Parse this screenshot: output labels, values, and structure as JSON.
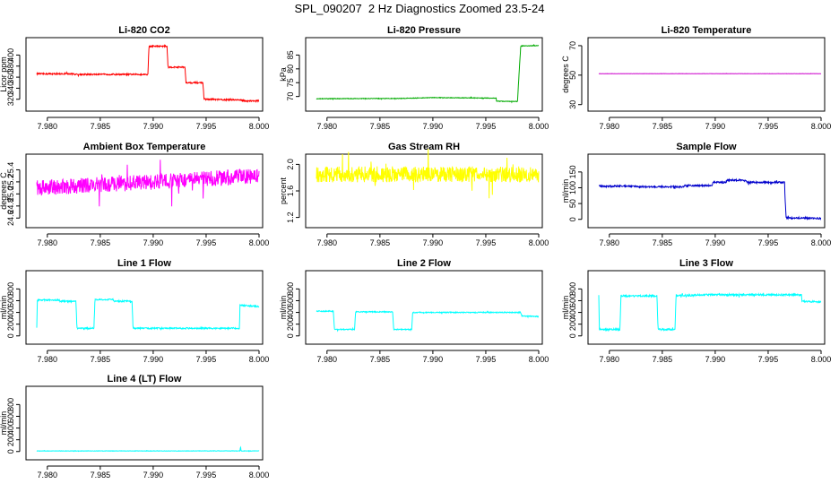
{
  "figure_title": "SPL_090207  2 Hz Diagnostics Zoomed 23.5-24",
  "chart_data": [
    {
      "type": "line",
      "title": "Li-820 CO2",
      "ylabel": "Licor ppm",
      "color": "#ff0000",
      "xlim": [
        7.979,
        8.0
      ],
      "ylim": [
        305,
        425
      ],
      "xticks": [
        7.98,
        7.985,
        7.99,
        7.995,
        8.0
      ],
      "xtick_labels": [
        "7.980",
        "7.985",
        "7.990",
        "7.995",
        "8.000"
      ],
      "yticks": [
        320,
        340,
        360,
        380,
        400
      ],
      "ytick_labels": [
        "320",
        "340",
        "360",
        "380",
        "400"
      ],
      "noise": 1.2,
      "series": [
        {
          "name": "CO2",
          "x": [
            7.979,
            7.9825,
            7.9826,
            7.9895,
            7.9896,
            7.9913,
            7.9914,
            7.993,
            7.9931,
            7.9947,
            7.9948,
            7.997,
            7.998,
            7.9988,
            8.0
          ],
          "y": [
            366,
            366,
            365,
            365,
            416,
            416,
            378,
            378,
            350,
            350,
            320,
            319,
            319,
            317,
            317
          ]
        }
      ]
    },
    {
      "type": "line",
      "title": "Li-820 Pressure",
      "ylabel": "kPa",
      "color": "#00aa00",
      "xlim": [
        7.979,
        8.0
      ],
      "ylim": [
        66,
        90
      ],
      "xticks": [
        7.98,
        7.985,
        7.99,
        7.995,
        8.0
      ],
      "xtick_labels": [
        "7.980",
        "7.985",
        "7.990",
        "7.995",
        "8.000"
      ],
      "yticks": [
        70,
        75,
        80,
        85
      ],
      "ytick_labels": [
        "70",
        "75",
        "80",
        "85"
      ],
      "noise": 0.1,
      "series": [
        {
          "name": "Pressure",
          "x": [
            7.979,
            7.987,
            7.99,
            7.996,
            7.99601,
            7.998,
            7.99805,
            7.99825,
            7.9983,
            8.0
          ],
          "y": [
            69.2,
            69.3,
            69.6,
            69.4,
            68.3,
            68.2,
            72.0,
            85.0,
            88.3,
            88.4
          ]
        }
      ]
    },
    {
      "type": "line",
      "title": "Li-820 Temperature",
      "ylabel": "degrees C",
      "color": "#cc00cc",
      "xlim": [
        7.979,
        8.0
      ],
      "ylim": [
        28,
        73
      ],
      "xticks": [
        7.98,
        7.985,
        7.99,
        7.995,
        8.0
      ],
      "xtick_labels": [
        "7.980",
        "7.985",
        "7.990",
        "7.995",
        "8.000"
      ],
      "yticks": [
        30,
        50,
        70
      ],
      "ytick_labels": [
        "30",
        "50",
        "70"
      ],
      "noise": 0.05,
      "series": [
        {
          "name": "Temperature",
          "x": [
            7.979,
            8.0
          ],
          "y": [
            51.0,
            51.0
          ]
        }
      ]
    },
    {
      "type": "line",
      "title": "Ambient Box Temperature",
      "ylabel": "degrees C",
      "color": "#ff00ff",
      "xlim": [
        7.979,
        8.0
      ],
      "ylim": [
        24.5,
        25.6
      ],
      "xticks": [
        7.98,
        7.985,
        7.99,
        7.995,
        8.0
      ],
      "xtick_labels": [
        "7.980",
        "7.985",
        "7.990",
        "7.995",
        "8.000"
      ],
      "yticks": [
        24.6,
        24.8,
        25.0,
        25.2,
        25.4
      ],
      "ytick_labels": [
        "24.6",
        "24.8",
        "25.0",
        "25.2",
        "25.4"
      ],
      "noise": 0.13,
      "series": [
        {
          "name": "Box Temperature",
          "x": [
            7.979,
            7.985,
            7.99,
            7.995,
            8.0
          ],
          "y": [
            25.1,
            25.15,
            25.2,
            25.25,
            25.3
          ]
        }
      ]
    },
    {
      "type": "line",
      "title": "Gas Stream RH",
      "ylabel": "percent",
      "color": "#ffff00",
      "xlim": [
        7.979,
        8.0
      ],
      "ylim": [
        1.1,
        2.1
      ],
      "xticks": [
        7.98,
        7.985,
        7.99,
        7.995,
        8.0
      ],
      "xtick_labels": [
        "7.980",
        "7.985",
        "7.990",
        "7.995",
        "8.000"
      ],
      "yticks": [
        1.2,
        1.6,
        2.0
      ],
      "ytick_labels": [
        "1.2",
        "1.6",
        "2.0"
      ],
      "noise": 0.12,
      "series": [
        {
          "name": "RH",
          "x": [
            7.979,
            8.0
          ],
          "y": [
            1.85,
            1.85
          ]
        }
      ]
    },
    {
      "type": "line",
      "title": "Sample Flow",
      "ylabel": "ml/min",
      "color": "#0000cc",
      "xlim": [
        7.979,
        8.0
      ],
      "ylim": [
        -15,
        195
      ],
      "xticks": [
        7.98,
        7.985,
        7.99,
        7.995,
        8.0
      ],
      "xtick_labels": [
        "7.980",
        "7.985",
        "7.990",
        "7.995",
        "8.000"
      ],
      "yticks": [
        0,
        50,
        100,
        150
      ],
      "ytick_labels": [
        "0",
        "50",
        "100",
        "150"
      ],
      "noise": 2.5,
      "series": [
        {
          "name": "Sample Flow",
          "x": [
            7.979,
            7.9825,
            7.9826,
            7.987,
            7.9871,
            7.9897,
            7.9898,
            7.991,
            7.9911,
            7.9929,
            7.993,
            7.99655,
            7.9966,
            7.9967,
            8.0
          ],
          "y": [
            105,
            105,
            103,
            103,
            107,
            107,
            117,
            117,
            124,
            124,
            117,
            117,
            65,
            5,
            3
          ]
        }
      ]
    },
    {
      "type": "line",
      "title": "Line 1 Flow",
      "ylabel": "ml/min",
      "color": "#00ffff",
      "xlim": [
        7.979,
        8.0
      ],
      "ylim": [
        -80,
        1050
      ],
      "xticks": [
        7.98,
        7.985,
        7.99,
        7.995,
        8.0
      ],
      "xtick_labels": [
        "7.980",
        "7.985",
        "7.990",
        "7.995",
        "8.000"
      ],
      "yticks": [
        0,
        200,
        400,
        600,
        800
      ],
      "ytick_labels": [
        "0",
        "200",
        "400",
        "600",
        "800"
      ],
      "noise": 12,
      "series": [
        {
          "name": "Line 1",
          "x": [
            7.979,
            7.97905,
            7.9811,
            7.9812,
            7.9827,
            7.9828,
            7.9844,
            7.9845,
            7.9862,
            7.9863,
            7.988,
            7.9881,
            7.99815,
            7.9982,
            8.0
          ],
          "y": [
            130,
            610,
            610,
            590,
            590,
            130,
            130,
            620,
            620,
            590,
            590,
            130,
            130,
            520,
            500
          ]
        }
      ]
    },
    {
      "type": "line",
      "title": "Line 2 Flow",
      "ylabel": "ml/min",
      "color": "#00ffff",
      "xlim": [
        7.979,
        8.0
      ],
      "ylim": [
        -80,
        1050
      ],
      "xticks": [
        7.98,
        7.985,
        7.99,
        7.995,
        8.0
      ],
      "xtick_labels": [
        "7.980",
        "7.985",
        "7.990",
        "7.995",
        "8.000"
      ],
      "yticks": [
        0,
        200,
        400,
        600,
        800
      ],
      "ytick_labels": [
        "0",
        "200",
        "400",
        "600",
        "800"
      ],
      "noise": 8,
      "series": [
        {
          "name": "Line 2",
          "x": [
            7.979,
            7.9806,
            7.9807,
            7.9826,
            7.9827,
            7.9862,
            7.9863,
            7.988,
            7.9881,
            7.9983,
            7.9984,
            8.0
          ],
          "y": [
            420,
            420,
            110,
            110,
            410,
            410,
            110,
            110,
            400,
            400,
            340,
            330
          ]
        }
      ]
    },
    {
      "type": "line",
      "title": "Line 3 Flow",
      "ylabel": "ml/min",
      "color": "#00ffff",
      "xlim": [
        7.979,
        8.0
      ],
      "ylim": [
        -80,
        1050
      ],
      "xticks": [
        7.98,
        7.985,
        7.99,
        7.995,
        8.0
      ],
      "xtick_labels": [
        "7.980",
        "7.985",
        "7.990",
        "7.995",
        "8.000"
      ],
      "yticks": [
        0,
        200,
        400,
        600,
        800
      ],
      "ytick_labels": [
        "0",
        "200",
        "400",
        "600",
        "800"
      ],
      "noise": 14,
      "series": [
        {
          "name": "Line 3",
          "x": [
            7.979,
            7.97905,
            7.981,
            7.9811,
            7.9845,
            7.9846,
            7.9862,
            7.9863,
            7.988,
            7.9881,
            7.99815,
            7.9982,
            8.0
          ],
          "y": [
            680,
            110,
            110,
            680,
            680,
            110,
            110,
            690,
            690,
            700,
            700,
            590,
            580
          ]
        }
      ]
    },
    {
      "type": "line",
      "title": "Line 4 (LT) Flow",
      "ylabel": "ml/min",
      "color": "#00ffff",
      "xlim": [
        7.979,
        8.0
      ],
      "ylim": [
        -80,
        1050
      ],
      "xticks": [
        7.98,
        7.985,
        7.99,
        7.995,
        8.0
      ],
      "xtick_labels": [
        "7.980",
        "7.985",
        "7.990",
        "7.995",
        "8.000"
      ],
      "yticks": [
        0,
        200,
        400,
        600,
        800
      ],
      "ytick_labels": [
        "0",
        "200",
        "400",
        "600",
        "800"
      ],
      "noise": 3,
      "series": [
        {
          "name": "Line 4",
          "x": [
            7.979,
            7.9982,
            7.99825,
            7.9983,
            7.9984,
            8.0
          ],
          "y": [
            10,
            10,
            90,
            10,
            10,
            10
          ]
        }
      ]
    }
  ]
}
